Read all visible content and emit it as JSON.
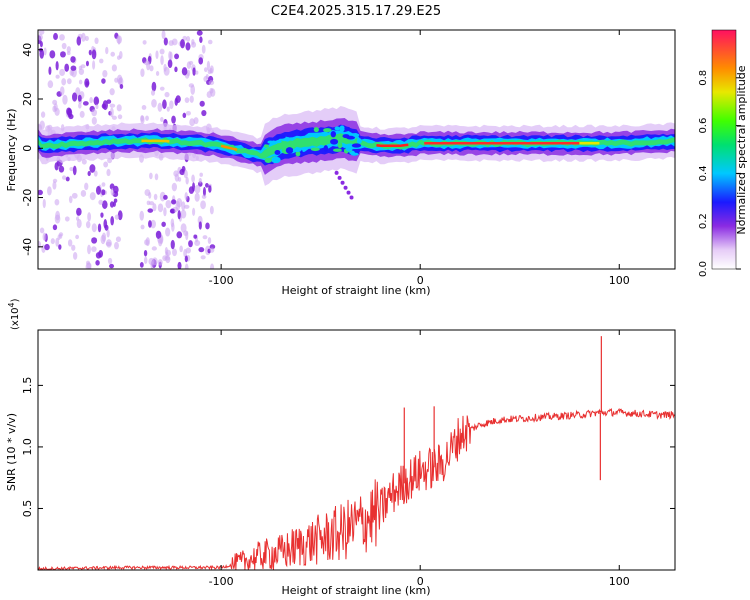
{
  "title": "C2E4.2025.315.17.29.E25",
  "colors": {
    "line": "#e83030",
    "axis": "#000000"
  },
  "chart_data": [
    {
      "type": "heatmap",
      "xlabel": "Height of straight line (km)",
      "ylabel": "Frequency (Hz)",
      "xlim": [
        -192,
        128
      ],
      "ylim": [
        -49,
        48
      ],
      "xticks": [
        -100,
        0,
        100
      ],
      "xtick_labels": [
        "-100",
        "0",
        "100"
      ],
      "yticks": [
        -40,
        -20,
        0,
        20,
        40
      ],
      "ytick_labels": [
        "-40",
        "-20",
        "0",
        "20",
        "40"
      ],
      "ridge": {
        "x": [
          -190,
          -170,
          -150,
          -130,
          -110,
          -100,
          -90,
          -80,
          -70,
          -60,
          -50,
          -40,
          -30,
          -20,
          -10,
          0,
          20,
          50,
          80,
          90,
          100,
          128
        ],
        "y": [
          1,
          2,
          3,
          3,
          2,
          1,
          -1,
          -3,
          1,
          2,
          3,
          4,
          2,
          1,
          1,
          2,
          2,
          2,
          2,
          2,
          2,
          3
        ]
      },
      "colorbar": {
        "label": "Normalized spectral amplitude",
        "range": [
          0.0,
          1.0
        ],
        "ticks": [
          0.0,
          0.2,
          0.4,
          0.6,
          0.8
        ],
        "tick_labels": [
          "0.0",
          "0.2",
          "0.4",
          "0.6",
          "0.8"
        ]
      }
    },
    {
      "type": "line",
      "xlabel": "Height of straight line (km)",
      "ylabel": "SNR (10 * v/v)",
      "y_multiplier": "(x10",
      "y_multiplier_exp": "4",
      "y_multiplier_close": ")",
      "xlim": [
        -192,
        128
      ],
      "ylim": [
        0,
        1.95
      ],
      "xticks": [
        -100,
        0,
        100
      ],
      "xtick_labels": [
        "-100",
        "0",
        "100"
      ],
      "yticks": [
        0.5,
        1.0,
        1.5
      ],
      "ytick_labels": [
        "0.5",
        "1.0",
        "1.5"
      ],
      "series": [
        {
          "name": "SNR",
          "x": [
            -192,
            -150,
            -110,
            -100,
            -90,
            -80,
            -70,
            -60,
            -50,
            -40,
            -30,
            -20,
            -15,
            -10,
            0,
            10,
            15,
            20,
            30,
            40,
            60,
            80,
            90,
            92,
            95,
            100,
            110,
            120,
            128
          ],
          "y": [
            0.01,
            0.02,
            0.02,
            0.02,
            0.06,
            0.12,
            0.14,
            0.2,
            0.25,
            0.3,
            0.38,
            0.48,
            0.6,
            0.68,
            0.8,
            0.85,
            0.95,
            1.1,
            1.18,
            1.22,
            1.24,
            1.26,
            1.28,
            1.28,
            1.28,
            1.28,
            1.27,
            1.26,
            1.26
          ]
        }
      ],
      "spikes": [
        {
          "x": -8,
          "y": 1.32
        },
        {
          "x": 7,
          "y": 1.33
        },
        {
          "x": 91,
          "y": 1.9
        },
        {
          "x": 90.5,
          "y": 0.73
        }
      ]
    }
  ]
}
